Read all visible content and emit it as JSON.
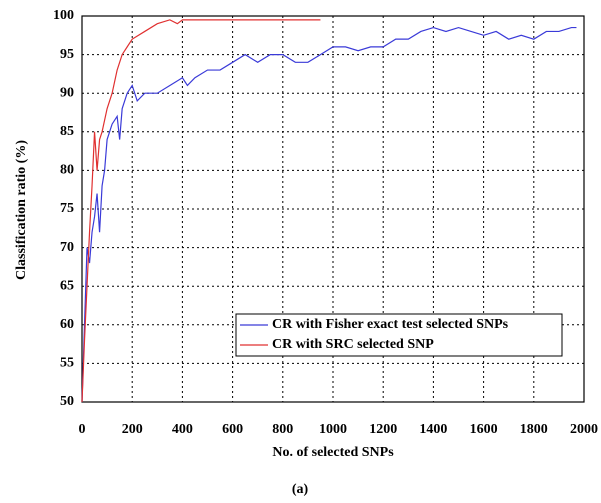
{
  "chart_data": {
    "type": "line",
    "xlabel": "No. of selected SNPs",
    "ylabel": "Classification ratio (%)",
    "caption": "(a)",
    "xlim": [
      0,
      2000
    ],
    "xticks": [
      0,
      200,
      400,
      600,
      800,
      1000,
      1200,
      1400,
      1600,
      1800,
      2000
    ],
    "ylim": [
      50,
      100
    ],
    "yticks": [
      50,
      55,
      60,
      65,
      70,
      75,
      80,
      85,
      90,
      95,
      100
    ],
    "grid": true,
    "legend": "lower right",
    "series": [
      {
        "name": "CR with Fisher exact test selected SNPs",
        "color": "#3a3ad8",
        "x": [
          0,
          10,
          20,
          30,
          40,
          50,
          60,
          70,
          80,
          90,
          100,
          120,
          140,
          150,
          160,
          180,
          200,
          220,
          250,
          300,
          350,
          400,
          420,
          450,
          500,
          550,
          600,
          650,
          700,
          750,
          800,
          850,
          900,
          950,
          1000,
          1050,
          1100,
          1150,
          1200,
          1250,
          1300,
          1350,
          1400,
          1450,
          1500,
          1550,
          1600,
          1650,
          1700,
          1750,
          1800,
          1850,
          1900,
          1950,
          1970
        ],
        "values": [
          50,
          60,
          70,
          68,
          72,
          74,
          77,
          72,
          78,
          80,
          84,
          86,
          87,
          84,
          88,
          90,
          91,
          89,
          90,
          90,
          91,
          92,
          91,
          92,
          93,
          93,
          94,
          95,
          94,
          95,
          95,
          94,
          94,
          95,
          96,
          96,
          95.5,
          96,
          96,
          97,
          97,
          98,
          98.5,
          98,
          98.5,
          98,
          97.5,
          98,
          97,
          97.5,
          97,
          98,
          98,
          98.5,
          98.5
        ]
      },
      {
        "name": "CR with SRC selected SNP",
        "color": "#e03030",
        "x": [
          0,
          10,
          20,
          30,
          40,
          50,
          60,
          70,
          80,
          100,
          120,
          140,
          160,
          180,
          200,
          250,
          300,
          350,
          380,
          400,
          450,
          500,
          600,
          700,
          800,
          850,
          900,
          950
        ],
        "values": [
          50,
          58,
          65,
          72,
          78,
          85,
          80,
          84,
          85,
          88,
          90,
          93,
          95,
          96,
          97,
          98,
          99,
          99.5,
          99,
          99.5,
          99.5,
          99.5,
          99.5,
          99.5,
          99.5,
          99.5,
          99.5,
          99.5
        ]
      }
    ]
  }
}
